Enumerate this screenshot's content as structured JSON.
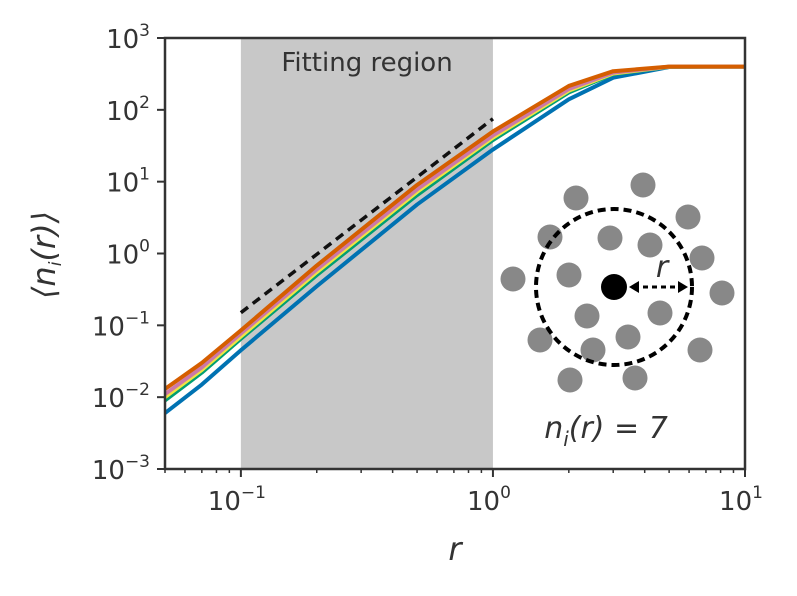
{
  "chart_data": {
    "type": "line",
    "title": "",
    "xlabel": "r",
    "ylabel": "⟨n_i(r)⟩",
    "xscale": "log",
    "yscale": "log",
    "xlim": [
      0.05,
      10
    ],
    "ylim": [
      0.001,
      1000
    ],
    "xticks": [
      {
        "base": "10",
        "exp": "−1",
        "value": 0.1
      },
      {
        "base": "10",
        "exp": "0",
        "value": 1
      },
      {
        "base": "10",
        "exp": "1",
        "value": 10
      }
    ],
    "yticks": [
      {
        "base": "10",
        "exp": "−3",
        "value": 0.001
      },
      {
        "base": "10",
        "exp": "−2",
        "value": 0.01
      },
      {
        "base": "10",
        "exp": "−1",
        "value": 0.1
      },
      {
        "base": "10",
        "exp": "0",
        "value": 1
      },
      {
        "base": "10",
        "exp": "1",
        "value": 10
      },
      {
        "base": "10",
        "exp": "2",
        "value": 100
      },
      {
        "base": "10",
        "exp": "3",
        "value": 1000
      }
    ],
    "grid": false,
    "shaded_region": {
      "x": [
        0.1,
        1
      ],
      "label": "Fitting region",
      "color": "#c8c8c8"
    },
    "reference_line": {
      "x": [
        0.1,
        1.0
      ],
      "y": [
        0.15,
        75
      ],
      "style": "dashed",
      "color": "#111111"
    },
    "series": [
      {
        "color": "#0072b2",
        "x": [
          0.05,
          0.07,
          0.1,
          0.2,
          0.5,
          1.0,
          2.0,
          3.0,
          5.0,
          7.0,
          10.0
        ],
        "y": [
          0.006,
          0.015,
          0.045,
          0.35,
          4.8,
          28,
          140,
          280,
          395,
          400,
          400
        ]
      },
      {
        "color": "#009e73",
        "x": [
          0.05,
          0.07,
          0.1,
          0.2,
          0.5,
          1.0,
          2.0,
          3.0,
          5.0,
          7.0,
          10.0
        ],
        "y": [
          0.009,
          0.022,
          0.065,
          0.5,
          6.5,
          38,
          175,
          315,
          398,
          400,
          400
        ]
      },
      {
        "color": "#f0e442",
        "x": [
          0.05,
          0.07,
          0.1,
          0.2,
          0.5,
          1.0,
          2.0,
          3.0,
          5.0,
          7.0,
          10.0
        ],
        "y": [
          0.01,
          0.024,
          0.07,
          0.55,
          7.2,
          41,
          185,
          320,
          398,
          400,
          400
        ]
      },
      {
        "color": "#cc79a7",
        "x": [
          0.05,
          0.07,
          0.1,
          0.2,
          0.5,
          1.0,
          2.0,
          3.0,
          5.0,
          7.0,
          10.0
        ],
        "y": [
          0.011,
          0.026,
          0.077,
          0.6,
          7.8,
          44,
          195,
          330,
          399,
          400,
          400
        ]
      },
      {
        "color": "#d55e00",
        "x": [
          0.05,
          0.07,
          0.1,
          0.2,
          0.5,
          1.0,
          2.0,
          3.0,
          5.0,
          7.0,
          10.0
        ],
        "y": [
          0.013,
          0.03,
          0.085,
          0.68,
          9.0,
          50,
          215,
          345,
          399,
          400,
          400
        ]
      }
    ],
    "inset": {
      "label": "n_i(r) = 7",
      "radius_label": "r",
      "count": 7,
      "marker_color": "#888888",
      "center_color": "#000000"
    }
  }
}
